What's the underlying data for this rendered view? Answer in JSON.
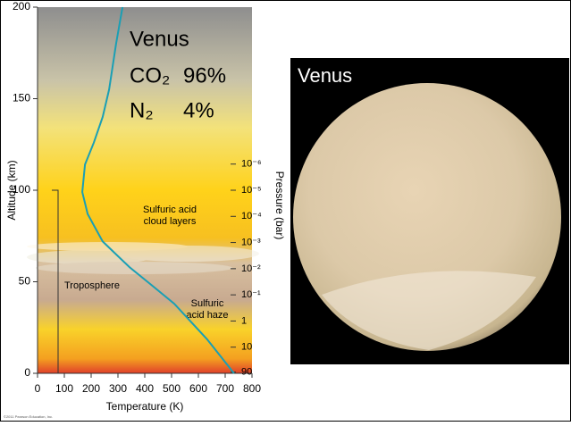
{
  "slide": {
    "planet": "Venus",
    "composition": [
      {
        "gas": "CO₂",
        "percent": "96%"
      },
      {
        "gas": "N₂",
        "percent": "4%"
      }
    ],
    "image_label": "Venus"
  },
  "chart_data": {
    "type": "line",
    "x_label": "Temperature (K)",
    "y_label": "Altitude (km)",
    "y2_label": "Pressure (bar)",
    "x": [
      733,
      633,
      510,
      427,
      343,
      243,
      187,
      167,
      177,
      210,
      243,
      267,
      293,
      317
    ],
    "series": [
      {
        "name": "Temperature",
        "color": "#1a9fb5",
        "values": [
          0,
          18.5,
          38,
          48,
          58,
          72,
          87,
          99,
          114,
          126,
          140,
          155,
          180,
          200
        ]
      }
    ],
    "xlim": [
      0,
      800
    ],
    "xticks": [
      0,
      100,
      200,
      300,
      400,
      500,
      600,
      700,
      800
    ],
    "ylim": [
      0,
      200
    ],
    "yticks": [
      0,
      50,
      100,
      150,
      200
    ],
    "y2_log": true,
    "y2lim": [
      100,
      1e-12
    ],
    "y2ticks": [
      {
        "value": 1e-06,
        "label": "10⁻⁶"
      },
      {
        "value": 1e-05,
        "label": "10⁻⁵"
      },
      {
        "value": 0.0001,
        "label": "10⁻⁴"
      },
      {
        "value": 0.001,
        "label": "10⁻³"
      },
      {
        "value": 0.01,
        "label": "10⁻²"
      },
      {
        "value": 0.1,
        "label": "10⁻¹"
      },
      1,
      10,
      90
    ],
    "annotations": [
      [
        "Sulfuric acid",
        "cloud layers"
      ],
      [
        "Troposphere"
      ],
      [
        "Sulfuric",
        "acid haze"
      ]
    ],
    "credit": "©2011 Pearson Education, Inc."
  }
}
